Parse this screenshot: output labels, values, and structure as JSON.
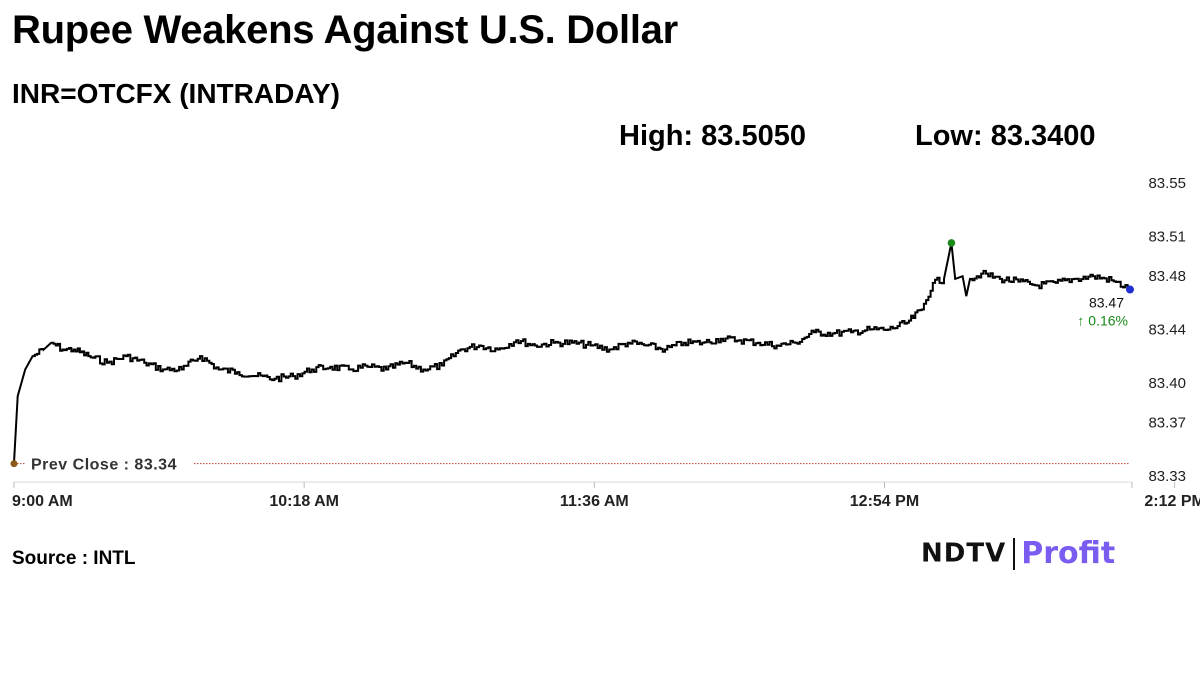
{
  "header": {
    "title": "Rupee Weakens Against U.S. Dollar",
    "subtitle": "INR=OTCFX (INTRADAY)",
    "high_label": "High: 83.5050",
    "low_label": "Low: 83.3400"
  },
  "footer": {
    "source": "Source : INTL",
    "brand_ndtv": "NDTV",
    "brand_profit": "Profit"
  },
  "colors": {
    "line": "#000000",
    "prev_close_line": "#c0392b",
    "high_marker": "#1a8a1a",
    "last_marker": "#1f2fd1",
    "change_positive": "#1a8a1a",
    "brand_accent": "#7a5cf0"
  },
  "chart_data": {
    "type": "line",
    "title": "Rupee Weakens Against U.S. Dollar",
    "xlabel": "",
    "ylabel": "",
    "x_ticks": [
      "9:00 AM",
      "10:18 AM",
      "11:36 AM",
      "12:54 PM",
      "2:12 PM"
    ],
    "x_range_minutes": [
      0,
      300
    ],
    "y_ticks": [
      "83.33",
      "83.37",
      "83.40",
      "83.44",
      "83.48",
      "83.51",
      "83.55"
    ],
    "ylim": [
      83.33,
      83.55
    ],
    "grid": false,
    "prev_close": {
      "label": "Prev Close : 83.34",
      "value": 83.34
    },
    "last": {
      "value_label": "83.47",
      "change_label": "↑ 0.16%",
      "value": 83.47
    },
    "high_point": {
      "x_minutes": 252,
      "value": 83.505
    },
    "series": [
      {
        "x_minutes": [
          0,
          1,
          3,
          5,
          8,
          10,
          13,
          16,
          20,
          25,
          30,
          35,
          40,
          45,
          50,
          55,
          60,
          65,
          70,
          75,
          80,
          85,
          90,
          95,
          100,
          105,
          110,
          115,
          120,
          125,
          130,
          135,
          140,
          145,
          150,
          155,
          160,
          165,
          170,
          175,
          180,
          185,
          190,
          195,
          200,
          205,
          210,
          215,
          220,
          225,
          230,
          235,
          240,
          244,
          247,
          250,
          252,
          253,
          255,
          256,
          257,
          260,
          265,
          270,
          275,
          280,
          285,
          290,
          295,
          300
        ],
        "values": [
          83.34,
          83.39,
          83.41,
          83.42,
          83.425,
          83.43,
          83.425,
          83.425,
          83.42,
          83.415,
          83.42,
          83.415,
          83.41,
          83.41,
          83.42,
          83.41,
          83.408,
          83.405,
          83.403,
          83.405,
          83.41,
          83.412,
          83.41,
          83.412,
          83.41,
          83.415,
          83.41,
          83.413,
          83.425,
          83.428,
          83.425,
          83.432,
          83.428,
          83.43,
          83.43,
          83.428,
          83.425,
          83.43,
          83.428,
          83.425,
          83.43,
          83.43,
          83.433,
          83.432,
          83.43,
          83.428,
          83.43,
          83.438,
          83.437,
          83.438,
          83.44,
          83.44,
          83.445,
          83.455,
          83.475,
          83.478,
          83.505,
          83.478,
          83.48,
          83.465,
          83.478,
          83.482,
          83.478,
          83.476,
          83.473,
          83.475,
          83.478,
          83.48,
          83.477,
          83.47
        ]
      }
    ]
  }
}
